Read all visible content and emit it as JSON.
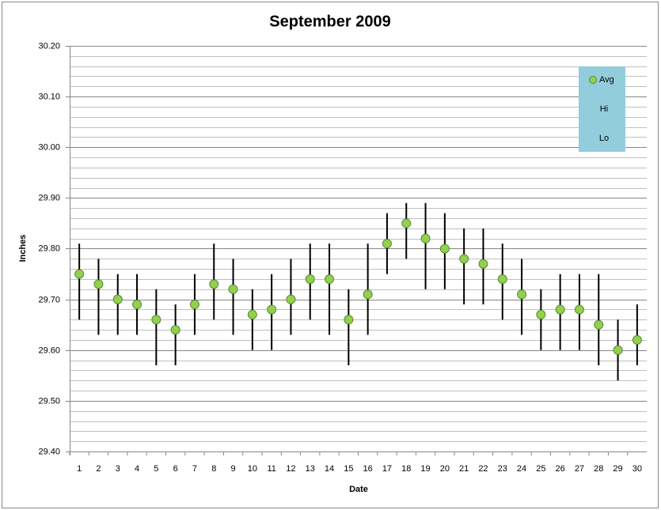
{
  "chart_data": {
    "type": "hilo",
    "title": "September 2009",
    "xlabel": "Date",
    "ylabel": "Inches",
    "categories": [
      "1",
      "2",
      "3",
      "4",
      "5",
      "6",
      "7",
      "8",
      "9",
      "10",
      "11",
      "12",
      "13",
      "14",
      "15",
      "16",
      "17",
      "18",
      "19",
      "20",
      "21",
      "22",
      "23",
      "24",
      "25",
      "26",
      "27",
      "28",
      "29",
      "30"
    ],
    "series": [
      {
        "name": "Avg",
        "color": "#92d050",
        "marker": "circle",
        "values": [
          29.75,
          29.73,
          29.7,
          29.69,
          29.66,
          29.64,
          29.69,
          29.73,
          29.72,
          29.67,
          29.68,
          29.7,
          29.74,
          29.74,
          29.66,
          29.71,
          29.81,
          29.85,
          29.82,
          29.8,
          29.78,
          29.77,
          29.74,
          29.71,
          29.67,
          29.68,
          29.68,
          29.65,
          29.6,
          29.62
        ]
      },
      {
        "name": "Hi",
        "color": "#000000",
        "marker": "none",
        "values": [
          29.81,
          29.78,
          29.75,
          29.75,
          29.72,
          29.69,
          29.75,
          29.81,
          29.78,
          29.72,
          29.75,
          29.78,
          29.81,
          29.81,
          29.72,
          29.81,
          29.87,
          29.89,
          29.89,
          29.87,
          29.84,
          29.84,
          29.81,
          29.78,
          29.72,
          29.75,
          29.75,
          29.75,
          29.66,
          29.69
        ]
      },
      {
        "name": "Lo",
        "color": "#000000",
        "marker": "none",
        "values": [
          29.66,
          29.63,
          29.63,
          29.63,
          29.57,
          29.57,
          29.63,
          29.66,
          29.63,
          29.6,
          29.6,
          29.63,
          29.66,
          29.63,
          29.57,
          29.63,
          29.75,
          29.78,
          29.72,
          29.72,
          29.69,
          29.69,
          29.66,
          29.63,
          29.6,
          29.6,
          29.6,
          29.57,
          29.54,
          29.57
        ]
      }
    ],
    "ylim": [
      29.4,
      30.2
    ],
    "yticks": [
      {
        "value": 29.4,
        "label": "29.40"
      },
      {
        "value": 29.5,
        "label": "29.50"
      },
      {
        "value": 29.6,
        "label": "29.60"
      },
      {
        "value": 29.7,
        "label": "29.70"
      },
      {
        "value": 29.8,
        "label": "29.80"
      },
      {
        "value": 29.9,
        "label": "29.90"
      },
      {
        "value": 30.0,
        "label": "30.00"
      },
      {
        "value": 30.1,
        "label": "30.10"
      },
      {
        "value": 30.2,
        "label": "30.20"
      }
    ],
    "minor_yticks": [
      29.42,
      29.44,
      29.46,
      29.48,
      29.52,
      29.54,
      29.56,
      29.58,
      29.62,
      29.64,
      29.66,
      29.68,
      29.72,
      29.74,
      29.76,
      29.78,
      29.82,
      29.84,
      29.86,
      29.88,
      29.92,
      29.94,
      29.96,
      29.98,
      30.02,
      30.04,
      30.06,
      30.08,
      30.12,
      30.14,
      30.16,
      30.18
    ],
    "grid": true,
    "legend_position": "top-right",
    "legend_color": "#92cddc"
  }
}
